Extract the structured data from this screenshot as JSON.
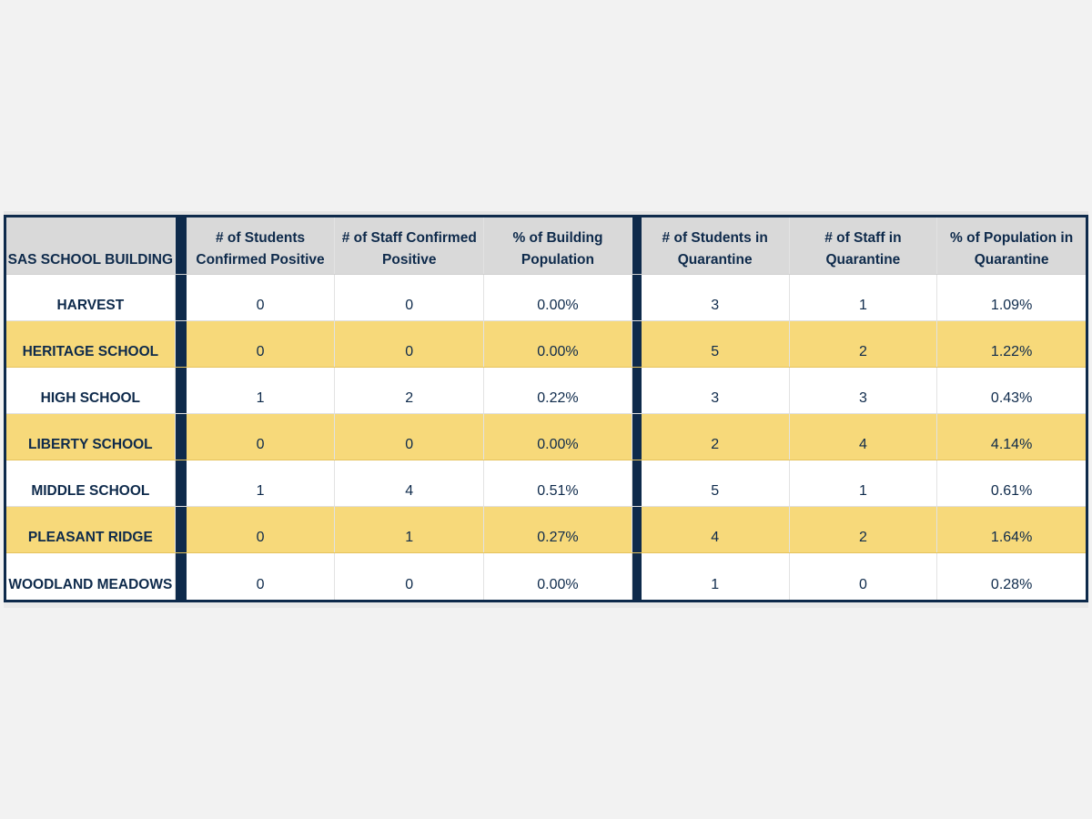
{
  "table": {
    "headers": [
      "SAS SCHOOL BUILDING",
      "# of Students Confirmed Positive",
      "# of Staff Confirmed Positive",
      "% of Building Population",
      "# of Students in Quarantine",
      "# of Staff in Quarantine",
      "% of Population in Quarantine"
    ],
    "rows": [
      {
        "building": "HARVEST",
        "students_positive": "0",
        "staff_positive": "0",
        "pct_building": "0.00%",
        "students_quarantine": "3",
        "staff_quarantine": "1",
        "pct_quarantine": "1.09%"
      },
      {
        "building": "HERITAGE SCHOOL",
        "students_positive": "0",
        "staff_positive": "0",
        "pct_building": "0.00%",
        "students_quarantine": "5",
        "staff_quarantine": "2",
        "pct_quarantine": "1.22%"
      },
      {
        "building": "HIGH SCHOOL",
        "students_positive": "1",
        "staff_positive": "2",
        "pct_building": "0.22%",
        "students_quarantine": "3",
        "staff_quarantine": "3",
        "pct_quarantine": "0.43%"
      },
      {
        "building": "LIBERTY SCHOOL",
        "students_positive": "0",
        "staff_positive": "0",
        "pct_building": "0.00%",
        "students_quarantine": "2",
        "staff_quarantine": "4",
        "pct_quarantine": "4.14%"
      },
      {
        "building": "MIDDLE SCHOOL",
        "students_positive": "1",
        "staff_positive": "4",
        "pct_building": "0.51%",
        "students_quarantine": "5",
        "staff_quarantine": "1",
        "pct_quarantine": "0.61%"
      },
      {
        "building": "PLEASANT RIDGE",
        "students_positive": "0",
        "staff_positive": "1",
        "pct_building": "0.27%",
        "students_quarantine": "4",
        "staff_quarantine": "2",
        "pct_quarantine": "1.64%"
      },
      {
        "building": "WOODLAND MEADOWS",
        "students_positive": "0",
        "staff_positive": "0",
        "pct_building": "0.00%",
        "students_quarantine": "1",
        "staff_quarantine": "0",
        "pct_quarantine": "0.28%"
      }
    ]
  },
  "colors": {
    "navy": "#0e2a4b",
    "header_bg": "#d9d9d9",
    "highlight_row": "#f7d97a",
    "page_bg": "#f2f2f2"
  }
}
